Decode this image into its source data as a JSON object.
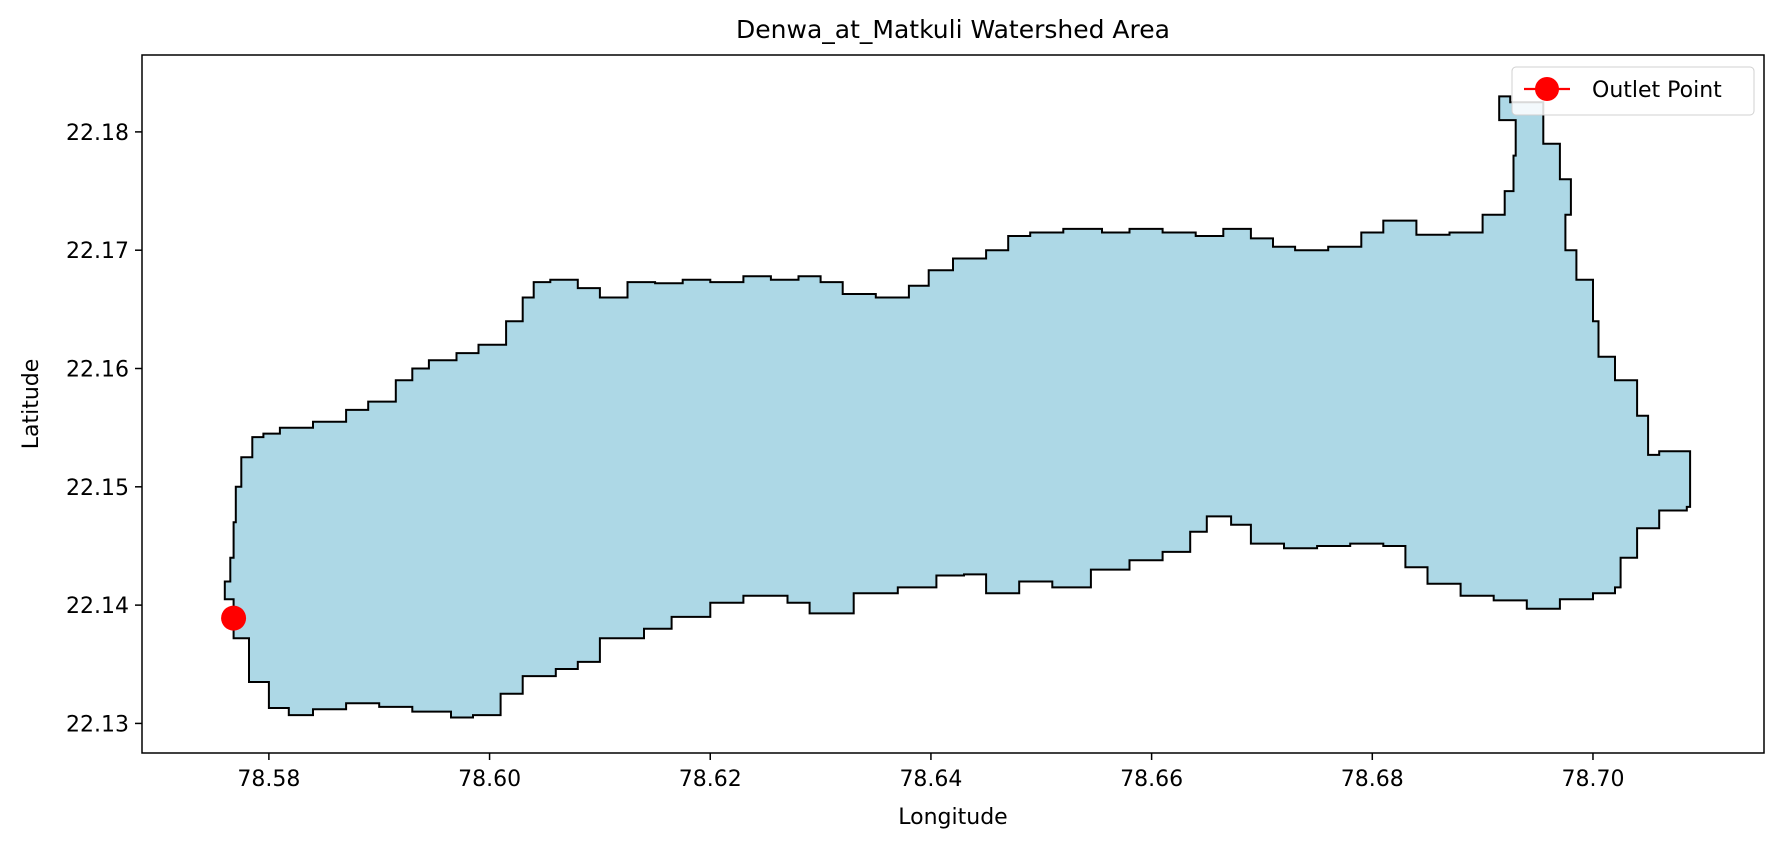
{
  "chart_data": {
    "type": "map",
    "title": "Denwa_at_Matkuli Watershed Area",
    "xlabel": "Longitude",
    "ylabel": "Latitude",
    "xlim": [
      78.5685,
      78.7155
    ],
    "ylim": [
      22.1275,
      22.1865
    ],
    "xticks": [
      78.58,
      78.6,
      78.62,
      78.64,
      78.66,
      78.68,
      78.7
    ],
    "xtick_labels": [
      "78.58",
      "78.60",
      "78.62",
      "78.64",
      "78.66",
      "78.68",
      "78.70"
    ],
    "yticks": [
      22.13,
      22.14,
      22.15,
      22.16,
      22.17,
      22.18
    ],
    "ytick_labels": [
      "22.13",
      "22.14",
      "22.15",
      "22.16",
      "22.17",
      "22.18"
    ],
    "grid": false,
    "legend_position": "top-right",
    "legend": [
      {
        "label": "Outlet Point",
        "color": "#ff0000",
        "marker": "circle-line"
      }
    ],
    "watershed": {
      "fill_color": "#add8e6",
      "edge_color": "#000000",
      "boundary": [
        [
          78.5768,
          22.1372
        ],
        [
          78.5782,
          22.1335
        ],
        [
          78.58,
          22.1313
        ],
        [
          78.5818,
          22.1307
        ],
        [
          78.584,
          22.1312
        ],
        [
          78.587,
          22.1317
        ],
        [
          78.59,
          22.1314
        ],
        [
          78.593,
          22.131
        ],
        [
          78.5965,
          22.1305
        ],
        [
          78.5985,
          22.1307
        ],
        [
          78.601,
          22.1325
        ],
        [
          78.603,
          22.134
        ],
        [
          78.606,
          22.1346
        ],
        [
          78.608,
          22.1352
        ],
        [
          78.61,
          22.1372
        ],
        [
          78.614,
          22.138
        ],
        [
          78.6165,
          22.139
        ],
        [
          78.62,
          22.1402
        ],
        [
          78.623,
          22.1408
        ],
        [
          78.627,
          22.1402
        ],
        [
          78.629,
          22.1393
        ],
        [
          78.633,
          22.141
        ],
        [
          78.637,
          22.1415
        ],
        [
          78.6405,
          22.1425
        ],
        [
          78.643,
          22.1426
        ],
        [
          78.645,
          22.141
        ],
        [
          78.648,
          22.142
        ],
        [
          78.651,
          22.1415
        ],
        [
          78.6545,
          22.143
        ],
        [
          78.658,
          22.1438
        ],
        [
          78.661,
          22.1445
        ],
        [
          78.6635,
          22.1462
        ],
        [
          78.665,
          22.1475
        ],
        [
          78.6672,
          22.1468
        ],
        [
          78.669,
          22.1452
        ],
        [
          78.672,
          22.1448
        ],
        [
          78.675,
          22.145
        ],
        [
          78.678,
          22.1452
        ],
        [
          78.681,
          22.145
        ],
        [
          78.683,
          22.1432
        ],
        [
          78.685,
          22.1418
        ],
        [
          78.688,
          22.1408
        ],
        [
          78.691,
          22.1404
        ],
        [
          78.694,
          22.1397
        ],
        [
          78.697,
          22.1405
        ],
        [
          78.7,
          22.141
        ],
        [
          78.702,
          22.1415
        ],
        [
          78.7025,
          22.144
        ],
        [
          78.704,
          22.1465
        ],
        [
          78.706,
          22.148
        ],
        [
          78.7085,
          22.1483
        ],
        [
          78.7088,
          22.153
        ],
        [
          78.706,
          22.1527
        ],
        [
          78.705,
          22.156
        ],
        [
          78.704,
          22.159
        ],
        [
          78.702,
          22.161
        ],
        [
          78.7005,
          22.164
        ],
        [
          78.7,
          22.1675
        ],
        [
          78.6985,
          22.17
        ],
        [
          78.6975,
          22.173
        ],
        [
          78.698,
          22.176
        ],
        [
          78.697,
          22.179
        ],
        [
          78.6955,
          22.1825
        ],
        [
          78.6925,
          22.183
        ],
        [
          78.6915,
          22.181
        ],
        [
          78.693,
          22.178
        ],
        [
          78.6928,
          22.175
        ],
        [
          78.692,
          22.173
        ],
        [
          78.69,
          22.1715
        ],
        [
          78.687,
          22.1713
        ],
        [
          78.684,
          22.1725
        ],
        [
          78.681,
          22.1715
        ],
        [
          78.679,
          22.1703
        ],
        [
          78.676,
          22.17
        ],
        [
          78.673,
          22.1703
        ],
        [
          78.671,
          22.171
        ],
        [
          78.669,
          22.1718
        ],
        [
          78.6665,
          22.1712
        ],
        [
          78.664,
          22.1715
        ],
        [
          78.661,
          22.1718
        ],
        [
          78.658,
          22.1715
        ],
        [
          78.6555,
          22.1718
        ],
        [
          78.652,
          22.1715
        ],
        [
          78.649,
          22.1712
        ],
        [
          78.647,
          22.17
        ],
        [
          78.645,
          22.1693
        ],
        [
          78.642,
          22.1683
        ],
        [
          78.6398,
          22.167
        ],
        [
          78.638,
          22.166
        ],
        [
          78.635,
          22.1663
        ],
        [
          78.632,
          22.1673
        ],
        [
          78.63,
          22.1678
        ],
        [
          78.628,
          22.1675
        ],
        [
          78.6255,
          22.1678
        ],
        [
          78.623,
          22.1673
        ],
        [
          78.62,
          22.1675
        ],
        [
          78.6175,
          22.1672
        ],
        [
          78.615,
          22.1673
        ],
        [
          78.6125,
          22.166
        ],
        [
          78.61,
          22.1668
        ],
        [
          78.608,
          22.1675
        ],
        [
          78.6055,
          22.1673
        ],
        [
          78.604,
          22.166
        ],
        [
          78.603,
          22.164
        ],
        [
          78.6015,
          22.162
        ],
        [
          78.599,
          22.1613
        ],
        [
          78.597,
          22.1607
        ],
        [
          78.5945,
          22.16
        ],
        [
          78.593,
          22.159
        ],
        [
          78.5915,
          22.1572
        ],
        [
          78.589,
          22.1565
        ],
        [
          78.587,
          22.1555
        ],
        [
          78.584,
          22.155
        ],
        [
          78.581,
          22.1545
        ],
        [
          78.5795,
          22.1542
        ],
        [
          78.5785,
          22.1525
        ],
        [
          78.5775,
          22.15
        ],
        [
          78.577,
          22.147
        ],
        [
          78.5768,
          22.144
        ],
        [
          78.5765,
          22.142
        ],
        [
          78.576,
          22.1405
        ]
      ]
    },
    "series": [
      {
        "name": "Outlet Point",
        "type": "point",
        "x": 78.5768,
        "y": 22.1389,
        "color": "#ff0000"
      }
    ]
  }
}
